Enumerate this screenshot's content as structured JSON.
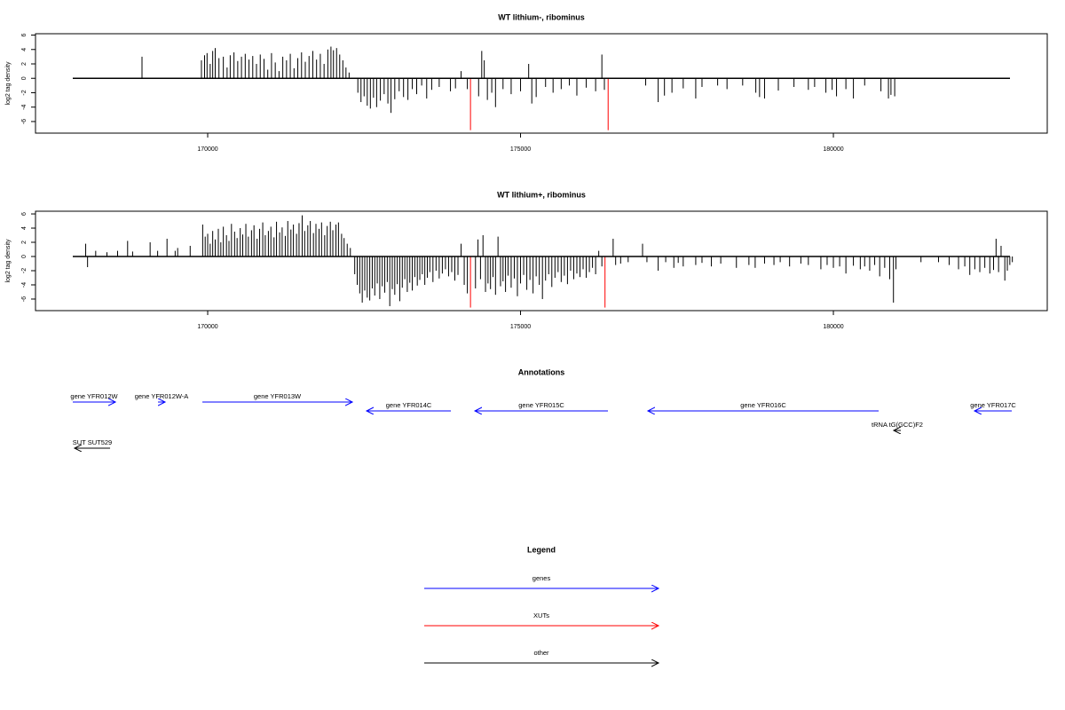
{
  "chart_data": [
    {
      "type": "spike",
      "title": "WT lithium-, ribominus",
      "ylabel": "log2 tag density",
      "xlim": [
        167248,
        183418
      ],
      "ylim": [
        -7.61,
        6.19
      ],
      "xticks": [
        170000,
        175000,
        180000
      ],
      "yticks": [
        6,
        4,
        2,
        0,
        -2,
        -4,
        -6
      ],
      "series": [
        {
          "color": "#000000",
          "x": [
            168950,
            169900,
            169950,
            169990,
            170040,
            170080,
            170120,
            170180,
            170250,
            170310,
            170360,
            170420,
            170480,
            170540,
            170600,
            170660,
            170720,
            170780,
            170840,
            170900,
            170960,
            171020,
            171080,
            171140,
            171200,
            171260,
            171320,
            171380,
            171440,
            171500,
            171560,
            171620,
            171680,
            171740,
            171800,
            171860,
            171920,
            171970,
            172010,
            172060,
            172110,
            172160,
            172210,
            172260,
            172400,
            172450,
            172500,
            172550,
            172600,
            172650,
            172700,
            172760,
            172820,
            172880,
            172930,
            172990,
            173060,
            173130,
            173200,
            173270,
            173340,
            173420,
            173500,
            173580,
            173700,
            173880,
            173960,
            174050,
            174150,
            174330,
            174380,
            174420,
            174470,
            174540,
            174600,
            174720,
            174850,
            175000,
            175130,
            175180,
            175250,
            175400,
            175520,
            175650,
            175780,
            175900,
            176050,
            176200,
            176300,
            176340,
            177000,
            177200,
            177300,
            177420,
            177600,
            177800,
            177900,
            178150,
            178300,
            178550,
            178760,
            178820,
            178900,
            179120,
            179370,
            179600,
            179700,
            179880,
            179980,
            180050,
            180200,
            180320,
            180500,
            180760,
            180880,
            180920,
            180980
          ],
          "values": [
            3.0,
            2.5,
            3.2,
            3.5,
            2.0,
            3.8,
            4.2,
            2.8,
            3.0,
            1.5,
            3.2,
            3.6,
            2.4,
            3.0,
            3.4,
            2.6,
            3.1,
            2.0,
            3.3,
            2.7,
            1.2,
            3.5,
            2.2,
            1.0,
            3.0,
            2.5,
            3.4,
            1.4,
            2.8,
            3.6,
            2.3,
            3.1,
            3.8,
            2.6,
            3.4,
            2.0,
            4.0,
            4.4,
            3.9,
            4.2,
            3.3,
            2.5,
            1.5,
            0.8,
            -2.0,
            -3.3,
            -2.5,
            -3.8,
            -4.2,
            -2.7,
            -4.0,
            -3.1,
            -2.2,
            -3.5,
            -4.8,
            -2.9,
            -1.8,
            -2.6,
            -3.0,
            -1.5,
            -2.2,
            -1.0,
            -2.8,
            -1.6,
            -1.2,
            -1.8,
            -1.4,
            1.0,
            -1.5,
            -2.5,
            3.8,
            2.5,
            -3.0,
            -2.0,
            -4.0,
            -1.5,
            -2.2,
            -1.8,
            2.0,
            -3.5,
            -2.6,
            -1.2,
            -2.0,
            -1.5,
            -1.0,
            -2.4,
            -1.3,
            -1.8,
            3.3,
            -1.6,
            -1.0,
            -3.3,
            -2.4,
            -2.0,
            -1.4,
            -2.8,
            -1.2,
            -1.0,
            -1.5,
            -1.0,
            -2.0,
            -2.6,
            -2.8,
            -1.7,
            -1.2,
            -1.6,
            -1.2,
            -2.0,
            -1.6,
            -2.5,
            -1.5,
            -2.8,
            -1.0,
            -1.8,
            -2.8,
            -2.3,
            -2.5
          ]
        },
        {
          "color": "#ff0000",
          "x": [
            174200,
            176400
          ],
          "values": [
            -7.2,
            -7.2
          ]
        }
      ]
    },
    {
      "type": "spike",
      "title": "WT lithium+, ribominus",
      "ylabel": "log2 tag density",
      "xlim": [
        167248,
        183418
      ],
      "ylim": [
        -7.63,
        6.38
      ],
      "xticks": [
        170000,
        175000,
        180000
      ],
      "yticks": [
        6,
        4,
        2,
        0,
        -2,
        -4,
        -6
      ],
      "series": [
        {
          "color": "#000000",
          "x": [
            168050,
            168080,
            168210,
            168390,
            168560,
            168720,
            168800,
            169080,
            169200,
            169350,
            169480,
            169520,
            169720,
            169920,
            169960,
            170000,
            170040,
            170080,
            170120,
            170170,
            170210,
            170250,
            170300,
            170340,
            170380,
            170430,
            170470,
            170520,
            170560,
            170610,
            170650,
            170700,
            170740,
            170790,
            170830,
            170880,
            170920,
            170970,
            171010,
            171060,
            171100,
            171150,
            171190,
            171240,
            171280,
            171330,
            171370,
            171420,
            171460,
            171510,
            171550,
            171600,
            171640,
            171690,
            171730,
            171780,
            171820,
            171870,
            171910,
            171960,
            172000,
            172050,
            172090,
            172140,
            172180,
            172230,
            172280,
            172350,
            172390,
            172430,
            172470,
            172510,
            172550,
            172590,
            172630,
            172670,
            172710,
            172750,
            172790,
            172830,
            172870,
            172910,
            172950,
            172990,
            173030,
            173070,
            173110,
            173150,
            173190,
            173230,
            173270,
            173310,
            173350,
            173390,
            173430,
            173470,
            173510,
            173550,
            173600,
            173650,
            173700,
            173750,
            173800,
            173850,
            173900,
            173950,
            174000,
            174050,
            174100,
            174150,
            174280,
            174320,
            174360,
            174400,
            174440,
            174480,
            174520,
            174560,
            174600,
            174640,
            174680,
            174720,
            174760,
            174800,
            174850,
            174900,
            174950,
            175000,
            175050,
            175100,
            175150,
            175200,
            175250,
            175300,
            175350,
            175400,
            175450,
            175500,
            175550,
            175600,
            175650,
            175700,
            175750,
            175800,
            175850,
            175900,
            175950,
            176000,
            176050,
            176100,
            176150,
            176200,
            176250,
            176300,
            176480,
            176520,
            176600,
            176720,
            176950,
            177020,
            177200,
            177320,
            177450,
            177520,
            177600,
            177800,
            177900,
            178050,
            178200,
            178450,
            178650,
            178750,
            178900,
            179050,
            179150,
            179300,
            179480,
            179600,
            179800,
            179900,
            180000,
            180100,
            180200,
            180320,
            180430,
            180500,
            180580,
            180660,
            180740,
            180820,
            180900,
            180960,
            181000,
            181400,
            181680,
            181850,
            182000,
            182100,
            182180,
            182260,
            182340,
            182420,
            182500,
            182560,
            182600,
            182640,
            182680,
            182740,
            182780,
            182820,
            182860
          ],
          "values": [
            1.8,
            -1.5,
            0.8,
            0.6,
            0.8,
            2.2,
            0.7,
            2.0,
            0.8,
            2.5,
            0.8,
            1.2,
            1.5,
            4.5,
            2.8,
            3.2,
            1.8,
            3.6,
            2.4,
            3.9,
            2.0,
            4.2,
            3.0,
            2.2,
            4.6,
            3.5,
            2.6,
            4.0,
            3.1,
            4.6,
            2.8,
            3.7,
            4.4,
            2.5,
            3.9,
            4.8,
            3.0,
            3.6,
            4.2,
            2.7,
            4.9,
            3.4,
            4.1,
            2.9,
            5.0,
            3.8,
            4.5,
            3.2,
            4.7,
            5.8,
            3.6,
            4.4,
            5.0,
            3.3,
            4.6,
            3.9,
            4.8,
            3.0,
            4.3,
            4.9,
            3.7,
            4.5,
            4.8,
            3.2,
            2.6,
            1.8,
            1.2,
            -2.5,
            -4.0,
            -5.2,
            -6.5,
            -4.8,
            -5.8,
            -6.2,
            -4.5,
            -5.5,
            -3.8,
            -6.0,
            -4.2,
            -5.1,
            -3.6,
            -7.0,
            -4.6,
            -5.4,
            -3.9,
            -6.3,
            -4.4,
            -3.2,
            -5.0,
            -3.7,
            -4.8,
            -2.9,
            -4.1,
            -3.3,
            -2.5,
            -4.0,
            -3.0,
            -2.2,
            -3.6,
            -2.0,
            -3.1,
            -2.4,
            -1.8,
            -2.8,
            -2.2,
            -3.4,
            -2.6,
            1.8,
            -4.0,
            -5.2,
            -4.5,
            2.4,
            -3.2,
            3.0,
            -5.0,
            -3.8,
            -4.6,
            -2.9,
            -5.4,
            2.8,
            -4.2,
            -3.5,
            -5.0,
            -2.7,
            -4.4,
            -3.1,
            -5.6,
            -3.8,
            -2.6,
            -4.7,
            -3.3,
            -5.2,
            -2.8,
            -4.0,
            -6.0,
            -3.4,
            -2.5,
            -4.3,
            -3.0,
            -2.2,
            -3.6,
            -2.7,
            -3.9,
            -2.0,
            -3.2,
            -2.4,
            -2.9,
            -1.8,
            -3.0,
            -2.2,
            -1.6,
            -2.5,
            0.8,
            -1.4,
            2.5,
            -1.2,
            -1.0,
            -0.8,
            1.8,
            -0.8,
            -2.0,
            -0.8,
            -1.6,
            -0.9,
            -1.4,
            -1.2,
            -0.9,
            -1.4,
            -1.0,
            -1.6,
            -1.2,
            -1.6,
            -1.0,
            -1.2,
            -0.8,
            -1.4,
            -1.0,
            -1.2,
            -1.8,
            -1.2,
            -1.6,
            -1.4,
            -2.4,
            -1.3,
            -1.8,
            -1.4,
            -2.0,
            -1.2,
            -2.8,
            -1.6,
            -3.2,
            -6.5,
            -1.8,
            -0.8,
            -0.8,
            -1.2,
            -1.8,
            -1.4,
            -2.6,
            -1.8,
            -2.2,
            -1.6,
            -2.4,
            -1.9,
            2.5,
            -2.2,
            1.5,
            -3.4,
            -2.0,
            -1.2,
            -0.8
          ]
        },
        {
          "color": "#ff0000",
          "x": [
            174200,
            176350
          ],
          "values": [
            -7.2,
            -7.2
          ]
        }
      ]
    },
    {
      "type": "annotation",
      "title": "Annotations",
      "xlim": [
        167248,
        183418
      ],
      "features": [
        {
          "label": "gene YFR012W",
          "start": 167844,
          "end": 168525,
          "strand": "+",
          "color": "#0000ff"
        },
        {
          "label": "gene YFR012W-A",
          "start": 169206,
          "end": 169319,
          "strand": "+",
          "color": "#0000ff"
        },
        {
          "label": "gene YFR013W",
          "start": 169915,
          "end": 172312,
          "strand": "+",
          "color": "#0000ff"
        },
        {
          "label": "gene YFR014C",
          "start": 172539,
          "end": 173887,
          "strand": "-",
          "color": "#0000ff"
        },
        {
          "label": "gene YFR015C",
          "start": 174270,
          "end": 176397,
          "strand": "-",
          "color": "#0000ff"
        },
        {
          "label": "gene YFR016C",
          "start": 177035,
          "end": 180723,
          "strand": "-",
          "color": "#0000ff"
        },
        {
          "label": "gene YFR017C",
          "start": 182255,
          "end": 182851,
          "strand": "-",
          "color": "#0000ff"
        },
        {
          "label": "tRNA tG(GCC)F2",
          "start": 180964,
          "end": 181078,
          "strand": "-",
          "color": "#000000"
        },
        {
          "label": "SUT SUT529",
          "start": 167872,
          "end": 168440,
          "strand": "-",
          "color": "#000000"
        }
      ]
    },
    {
      "type": "legend",
      "title": "Legend",
      "entries": [
        {
          "label": "genes",
          "color": "#0000ff"
        },
        {
          "label": "XUTs",
          "color": "#ff0000"
        },
        {
          "label": "other",
          "color": "#000000"
        }
      ]
    }
  ]
}
